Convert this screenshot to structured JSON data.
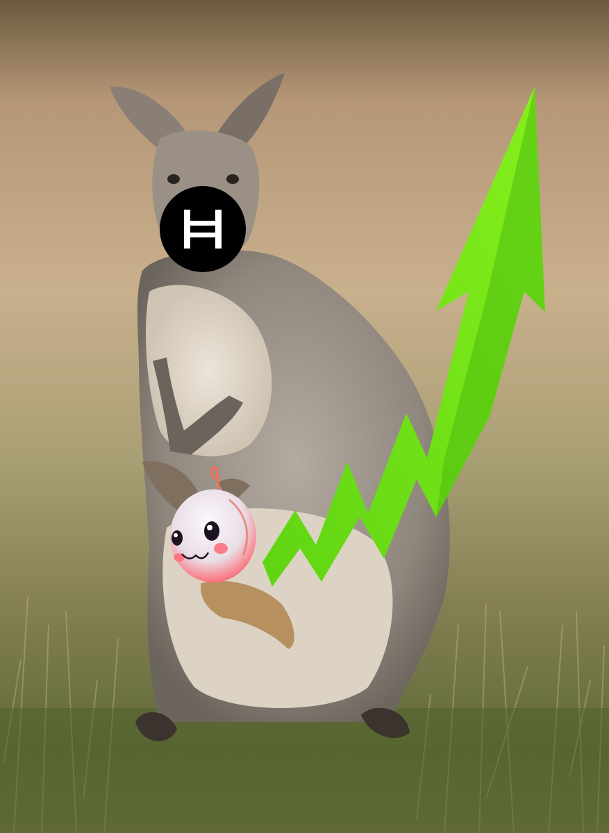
{
  "scene": {
    "subject": "wallaby-with-joey-in-pouch",
    "background": "grassland-meadow",
    "overlays": [
      {
        "name": "hedera-hbar-logo",
        "icon": "hbar-h-icon",
        "colors": {
          "badge": "#000000",
          "glyph": "#ffffff"
        }
      },
      {
        "name": "mascot-bubble",
        "icon": "cute-pink-blob-icon",
        "colors": {
          "body": "#f2eef3",
          "blush": "#ff4a5e"
        }
      },
      {
        "name": "green-upward-arrow",
        "icon": "trend-up-arrow-icon",
        "colors": {
          "fill": "#6fe21a",
          "shade": "#4cbc10"
        }
      }
    ]
  }
}
